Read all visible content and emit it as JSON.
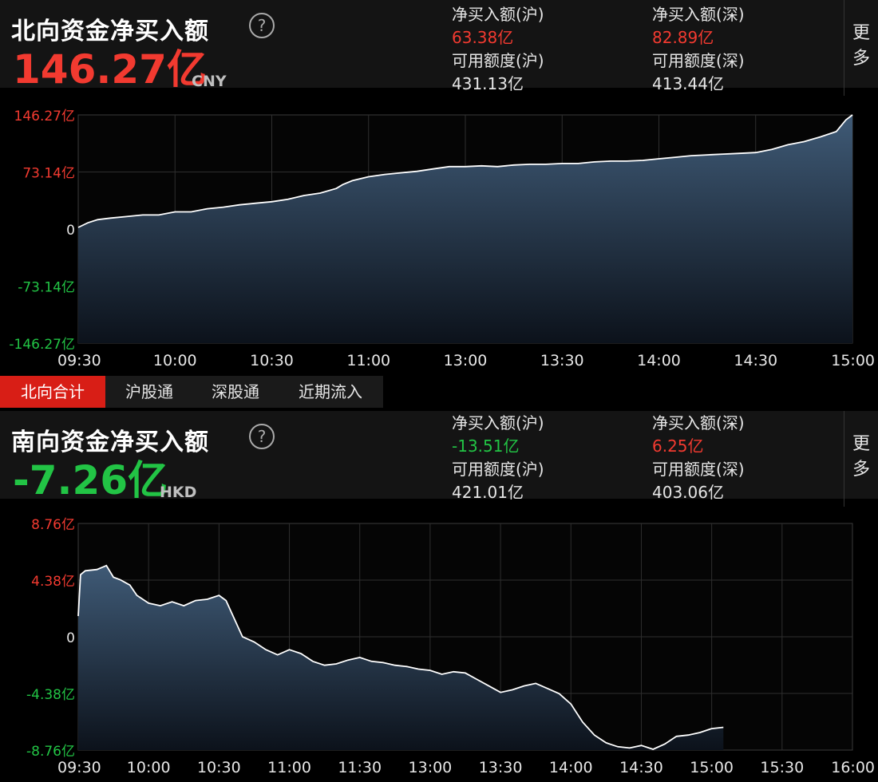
{
  "north": {
    "title": "北向资金净买入额",
    "help_icon": "help-circle-icon",
    "total": "146.27亿",
    "currency": "CNY",
    "sh_buy_label": "净买入额(沪)",
    "sh_buy_value": "63.38亿",
    "sz_buy_label": "净买入额(深)",
    "sz_buy_value": "82.89亿",
    "sh_quota_label": "可用额度(沪)",
    "sh_quota_value": "431.13亿",
    "sz_quota_label": "可用额度(深)",
    "sz_quota_value": "413.44亿",
    "more_label": [
      "更",
      "多"
    ]
  },
  "tabs": [
    {
      "label": "北向合计",
      "active": true
    },
    {
      "label": "沪股通",
      "active": false
    },
    {
      "label": "深股通",
      "active": false
    },
    {
      "label": "近期流入",
      "active": false
    }
  ],
  "south": {
    "title": "南向资金净买入额",
    "help_icon": "help-circle-icon",
    "total": "-7.26亿",
    "currency": "HKD",
    "sh_buy_label": "净买入额(沪)",
    "sh_buy_value": "-13.51亿",
    "sz_buy_label": "净买入额(深)",
    "sz_buy_value": "6.25亿",
    "sh_quota_label": "可用额度(沪)",
    "sh_quota_value": "421.01亿",
    "sz_quota_label": "可用额度(深)",
    "sz_quota_value": "403.06亿",
    "more_label": [
      "更",
      "多"
    ]
  },
  "colors": {
    "up": "#f23a30",
    "down": "#22c445",
    "line": "#ffffff",
    "fill_top": "#3f5a76",
    "fill_bottom": "#0c121b",
    "grid": "#2e2e2e",
    "tab_active": "#d81e16"
  },
  "chart_data": [
    {
      "type": "area",
      "title": "北向资金净买入额",
      "y_tick_labels": [
        "146.27亿",
        "73.14亿",
        "0",
        "-73.14亿",
        "-146.27亿"
      ],
      "ylim": [
        -146.27,
        146.27
      ],
      "x_tick_labels": [
        "09:30",
        "10:00",
        "10:30",
        "11:00",
        "13:00",
        "13:30",
        "14:00",
        "14:30",
        "15:00"
      ],
      "session_minutes": 240,
      "x": [
        0,
        3,
        6,
        10,
        15,
        20,
        25,
        30,
        35,
        40,
        45,
        50,
        55,
        60,
        65,
        70,
        75,
        80,
        82,
        85,
        90,
        95,
        100,
        105,
        110,
        115,
        120,
        125,
        130,
        135,
        140,
        145,
        150,
        155,
        160,
        165,
        170,
        175,
        180,
        185,
        190,
        195,
        200,
        205,
        210,
        215,
        220,
        225,
        230,
        235,
        238,
        240
      ],
      "y": [
        2,
        8,
        12,
        14,
        16,
        18,
        18,
        22,
        22,
        26,
        28,
        31,
        33,
        35,
        38,
        43,
        46,
        52,
        57,
        62,
        67,
        70,
        72,
        74,
        77,
        80,
        80,
        81,
        80,
        82,
        83,
        83,
        84,
        84,
        86,
        87,
        87,
        88,
        90,
        92,
        94,
        95,
        96,
        97,
        98,
        102,
        108,
        112,
        118,
        125,
        140,
        146.27
      ]
    },
    {
      "type": "area",
      "title": "南向资金净买入额",
      "y_tick_labels": [
        "8.76亿",
        "4.38亿",
        "0",
        "-4.38亿",
        "-8.76亿"
      ],
      "ylim": [
        -8.76,
        8.76
      ],
      "x_tick_labels": [
        "09:30",
        "10:00",
        "10:30",
        "11:00",
        "11:30",
        "13:00",
        "13:30",
        "14:00",
        "14:30",
        "15:00",
        "15:30",
        "16:00"
      ],
      "session_minutes": 330,
      "x": [
        0,
        1,
        3,
        8,
        12,
        15,
        18,
        22,
        25,
        30,
        35,
        40,
        45,
        50,
        55,
        60,
        63,
        65,
        70,
        75,
        80,
        85,
        90,
        95,
        100,
        105,
        110,
        115,
        120,
        125,
        130,
        135,
        140,
        145,
        150,
        155,
        160,
        165,
        170,
        175,
        180,
        185,
        190,
        195,
        200,
        205,
        210,
        215,
        220,
        225,
        230,
        235,
        240,
        245,
        250,
        255,
        260,
        265,
        270,
        275
      ],
      "y": [
        1.6,
        4.8,
        5.1,
        5.2,
        5.5,
        4.6,
        4.4,
        4.0,
        3.2,
        2.6,
        2.4,
        2.7,
        2.4,
        2.8,
        2.9,
        3.2,
        2.8,
        2.0,
        0.0,
        -0.4,
        -1.0,
        -1.4,
        -1.0,
        -1.3,
        -1.9,
        -2.2,
        -2.1,
        -1.8,
        -1.6,
        -1.9,
        -2.0,
        -2.2,
        -2.3,
        -2.5,
        -2.6,
        -2.9,
        -2.7,
        -2.8,
        -3.3,
        -3.8,
        -4.3,
        -4.1,
        -3.8,
        -3.6,
        -4.0,
        -4.4,
        -5.2,
        -6.6,
        -7.6,
        -8.2,
        -8.5,
        -8.6,
        -8.4,
        -8.7,
        -8.3,
        -7.7,
        -7.6,
        -7.4,
        -7.1,
        -7.0
      ]
    }
  ]
}
